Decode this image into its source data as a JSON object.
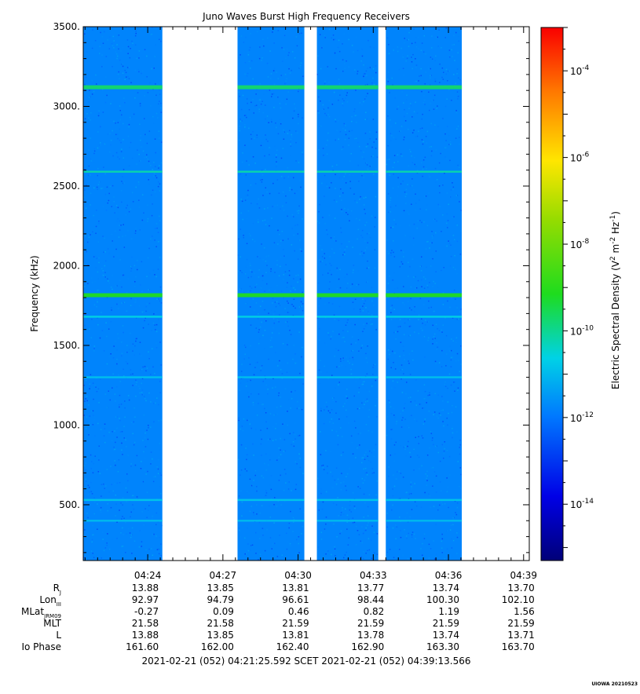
{
  "chart_data": {
    "type": "heatmap",
    "title": "Juno Waves Burst High Frequency Receivers",
    "ylabel": "Frequency (kHz)",
    "ylim": [
      150,
      3500
    ],
    "yticks": [
      500,
      1000,
      1500,
      2000,
      2500,
      3000,
      3500
    ],
    "ytick_labels": [
      "500.",
      "1000.",
      "1500.",
      "2000.",
      "2500.",
      "3000.",
      "3500."
    ],
    "x_start": "04:21:25.592",
    "x_end": "04:39:13.566",
    "xticks": [
      "04:24",
      "04:27",
      "04:30",
      "04:33",
      "04:36",
      "04:39"
    ],
    "data_segments": [
      [
        "04:21:25",
        "04:24:35"
      ],
      [
        "04:27:35",
        "04:30:15"
      ],
      [
        "04:30:45",
        "04:33:12"
      ],
      [
        "04:33:30",
        "04:36:32"
      ]
    ],
    "background_level_exp": -11.8,
    "emission_lines": [
      {
        "freq_khz": 3120,
        "level_exp": -9.7
      },
      {
        "freq_khz": 2590,
        "level_exp": -10.2
      },
      {
        "freq_khz": 1815,
        "level_exp": -9.1
      },
      {
        "freq_khz": 1680,
        "level_exp": -10.6
      },
      {
        "freq_khz": 1300,
        "level_exp": -10.9
      },
      {
        "freq_khz": 530,
        "level_exp": -10.8
      },
      {
        "freq_khz": 400,
        "level_exp": -11.0
      }
    ],
    "colorbar": {
      "label": "Electric Spectral Density (V",
      "label_sup1": "2",
      "label_mid": " m",
      "label_sup2": "-2",
      "label_mid2": " Hz",
      "label_sup3": "-1",
      "label_end": ")",
      "log_min": -15.3,
      "log_max": -3.0,
      "ticks": [
        {
          "base": "10",
          "exp": "-4",
          "value": -4
        },
        {
          "base": "10",
          "exp": "-6",
          "value": -6
        },
        {
          "base": "10",
          "exp": "-8",
          "value": -8
        },
        {
          "base": "10",
          "exp": "-10",
          "value": -10
        },
        {
          "base": "10",
          "exp": "-12",
          "value": -12
        },
        {
          "base": "10",
          "exp": "-14",
          "value": -14
        }
      ]
    },
    "ephemeris": {
      "rows": [
        {
          "label": "R",
          "sub": "J",
          "values": [
            "13.88",
            "13.85",
            "13.81",
            "13.77",
            "13.74",
            "13.70"
          ]
        },
        {
          "label": "Lon",
          "sub": "III",
          "values": [
            "92.97",
            "94.79",
            "96.61",
            "98.44",
            "100.30",
            "102.10"
          ]
        },
        {
          "label": "MLat",
          "sub": "JRM09",
          "values": [
            "-0.27",
            "0.09",
            "0.46",
            "0.82",
            "1.19",
            "1.56"
          ]
        },
        {
          "label": "MLT",
          "sub": "",
          "values": [
            "21.58",
            "21.58",
            "21.59",
            "21.59",
            "21.59",
            "21.59"
          ]
        },
        {
          "label": "L",
          "sub": "",
          "values": [
            "13.88",
            "13.85",
            "13.81",
            "13.78",
            "13.74",
            "13.71"
          ]
        },
        {
          "label": "Io Phase",
          "sub": "",
          "values": [
            "161.60",
            "162.00",
            "162.40",
            "162.90",
            "163.30",
            "163.70"
          ]
        }
      ]
    },
    "footer": "2021-02-21 (052) 04:21:25.592    SCET    2021-02-21 (052) 04:39:13.566",
    "stamp": "UIOWA 20210523"
  }
}
